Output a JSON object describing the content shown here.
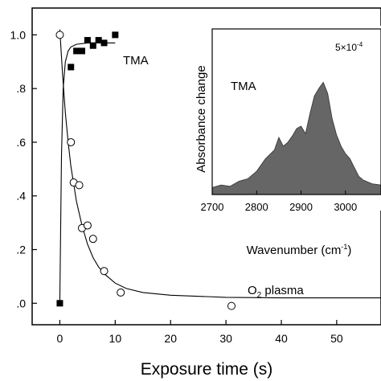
{
  "chart_data": [
    {
      "type": "scatter",
      "xlabel": "Exposure time (s)",
      "ylabel": "",
      "xlim": [
        -5,
        58
      ],
      "ylim": [
        -0.08,
        1.1
      ],
      "x_ticks": [
        0,
        10,
        20,
        30,
        40,
        50
      ],
      "x_tick_labels": [
        "0",
        "10",
        "20",
        "30",
        "40",
        "50"
      ],
      "y_ticks": [
        0.0,
        0.2,
        0.4,
        0.6,
        0.8,
        1.0
      ],
      "y_tick_labels": [
        ".0",
        ".2",
        ".4",
        ".6",
        ".8",
        "1.0"
      ],
      "grid": false,
      "series": [
        {
          "name": "TMA",
          "marker": "filled-square",
          "color": "#000000",
          "points": [
            [
              0,
              0.0
            ],
            [
              2,
              0.88
            ],
            [
              3,
              0.94
            ],
            [
              4,
              0.94
            ],
            [
              5,
              0.98
            ],
            [
              6,
              0.96
            ],
            [
              7,
              0.98
            ],
            [
              8,
              0.97
            ],
            [
              10,
              1.0
            ]
          ],
          "fit": [
            [
              0,
              0.0
            ],
            [
              0.3,
              0.55
            ],
            [
              0.6,
              0.8
            ],
            [
              1,
              0.9
            ],
            [
              1.5,
              0.94
            ],
            [
              2,
              0.955
            ],
            [
              3,
              0.965
            ],
            [
              5,
              0.97
            ],
            [
              8,
              0.97
            ],
            [
              10,
              0.97
            ]
          ]
        },
        {
          "name": "O₂ plasma",
          "name_parts": [
            "O",
            "2",
            " plasma"
          ],
          "marker": "open-circle",
          "color": "#000000",
          "points": [
            [
              0,
              1.0
            ],
            [
              2,
              0.6
            ],
            [
              2.5,
              0.45
            ],
            [
              3.5,
              0.44
            ],
            [
              4,
              0.28
            ],
            [
              5,
              0.29
            ],
            [
              6,
              0.24
            ],
            [
              8,
              0.12
            ],
            [
              11,
              0.04
            ],
            [
              31,
              -0.01
            ]
          ],
          "fit": [
            [
              0,
              1.02
            ],
            [
              0.5,
              0.85
            ],
            [
              1,
              0.71
            ],
            [
              1.5,
              0.6
            ],
            [
              2,
              0.51
            ],
            [
              3,
              0.38
            ],
            [
              4,
              0.29
            ],
            [
              5,
              0.22
            ],
            [
              6,
              0.17
            ],
            [
              7,
              0.135
            ],
            [
              8,
              0.11
            ],
            [
              10,
              0.075
            ],
            [
              12,
              0.055
            ],
            [
              15,
              0.04
            ],
            [
              20,
              0.03
            ],
            [
              30,
              0.022
            ],
            [
              40,
              0.02
            ],
            [
              58,
              0.02
            ]
          ]
        }
      ]
    },
    {
      "type": "area",
      "xlabel": "Wavenumber (cm⁻¹)",
      "xlabel_parts": [
        "Wavenumber (cm",
        "-1",
        ")"
      ],
      "ylabel": "Absorbance change",
      "xlim": [
        2700,
        3080
      ],
      "ylim": [
        0,
        1
      ],
      "x_ticks": [
        2700,
        2800,
        2900,
        3000
      ],
      "x_tick_labels": [
        "2700",
        "2800",
        "2900",
        "3000"
      ],
      "label": "TMA",
      "scale_bar": "5×10⁻⁴",
      "scale_parts": [
        "5×10",
        "-4"
      ],
      "fill_color": "#666666",
      "points": [
        [
          2700,
          0.03
        ],
        [
          2720,
          0.05
        ],
        [
          2740,
          0.04
        ],
        [
          2760,
          0.08
        ],
        [
          2780,
          0.1
        ],
        [
          2800,
          0.16
        ],
        [
          2820,
          0.26
        ],
        [
          2840,
          0.33
        ],
        [
          2850,
          0.43
        ],
        [
          2860,
          0.36
        ],
        [
          2870,
          0.39
        ],
        [
          2880,
          0.44
        ],
        [
          2890,
          0.5
        ],
        [
          2900,
          0.52
        ],
        [
          2910,
          0.46
        ],
        [
          2920,
          0.62
        ],
        [
          2930,
          0.76
        ],
        [
          2940,
          0.82
        ],
        [
          2950,
          0.87
        ],
        [
          2960,
          0.78
        ],
        [
          2970,
          0.58
        ],
        [
          2980,
          0.45
        ],
        [
          2990,
          0.36
        ],
        [
          3000,
          0.3
        ],
        [
          3010,
          0.26
        ],
        [
          3020,
          0.19
        ],
        [
          3030,
          0.12
        ],
        [
          3040,
          0.09
        ],
        [
          3060,
          0.06
        ],
        [
          3080,
          0.05
        ]
      ]
    }
  ],
  "legend_labels": {
    "tma": "TMA",
    "o2_parts": [
      "O",
      "2",
      " plasma"
    ]
  }
}
